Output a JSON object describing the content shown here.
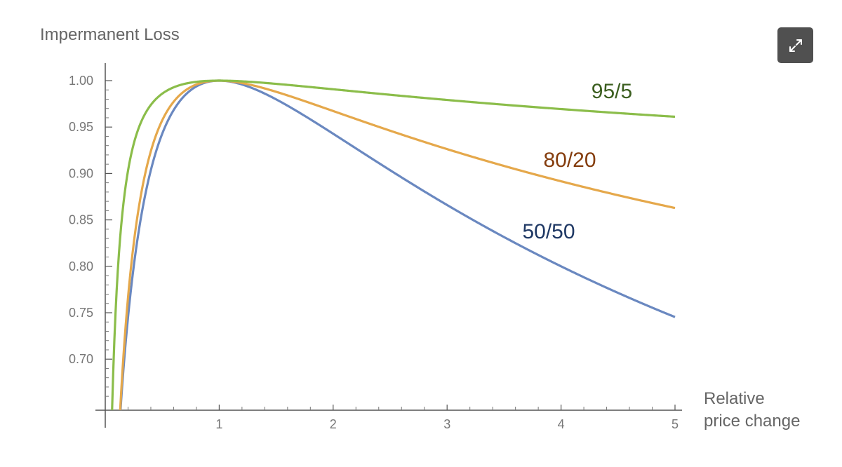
{
  "chart_data": {
    "type": "line",
    "title": "",
    "ylabel": "Impermanent Loss",
    "xlabel_lines": [
      "Relative",
      "price change"
    ],
    "xlim": [
      0,
      5
    ],
    "ylim": [
      0.645,
      1.0
    ],
    "xticks": [
      1,
      2,
      3,
      4,
      5
    ],
    "xtick_labels": [
      "1",
      "2",
      "3",
      "4",
      "5"
    ],
    "yticks": [
      1.0,
      0.95,
      0.9,
      0.85,
      0.8,
      0.75,
      0.7
    ],
    "ytick_labels": [
      "1.00",
      "0.95",
      "0.90",
      "0.85",
      "0.80",
      "0.75",
      "0.70"
    ],
    "grid": false,
    "legend": "inline labels",
    "series": [
      {
        "name": "50/50",
        "weight": 0.5,
        "color": "#6a88c0",
        "label_color": "#1f3864",
        "x": [
          0.1,
          0.2,
          0.3,
          0.5,
          1,
          2,
          3,
          4,
          5
        ],
        "y": [
          0.575,
          0.745,
          0.843,
          0.943,
          1.0,
          0.943,
          0.866,
          0.8,
          0.745
        ]
      },
      {
        "name": "80/20",
        "weight": 0.8,
        "color": "#e5a84b",
        "label_color": "#843c0c",
        "x": [
          0.1,
          0.2,
          0.3,
          0.5,
          1,
          2,
          3,
          4,
          5
        ],
        "y": [
          0.6,
          0.764,
          0.858,
          0.951,
          1.0,
          0.95,
          0.902,
          0.861,
          0.826
        ]
      },
      {
        "name": "95/5",
        "weight": 0.95,
        "color": "#8bbd4a",
        "label_color": "#3b5e1f",
        "x": [
          0.1,
          0.2,
          0.3,
          0.5,
          1,
          2,
          3,
          4,
          5
        ],
        "y": [
          0.871,
          0.938,
          0.965,
          0.988,
          1.0,
          0.986,
          0.972,
          0.962,
          0.958
        ]
      }
    ]
  },
  "ui": {
    "expand_icon": "expand-arrows-icon"
  }
}
